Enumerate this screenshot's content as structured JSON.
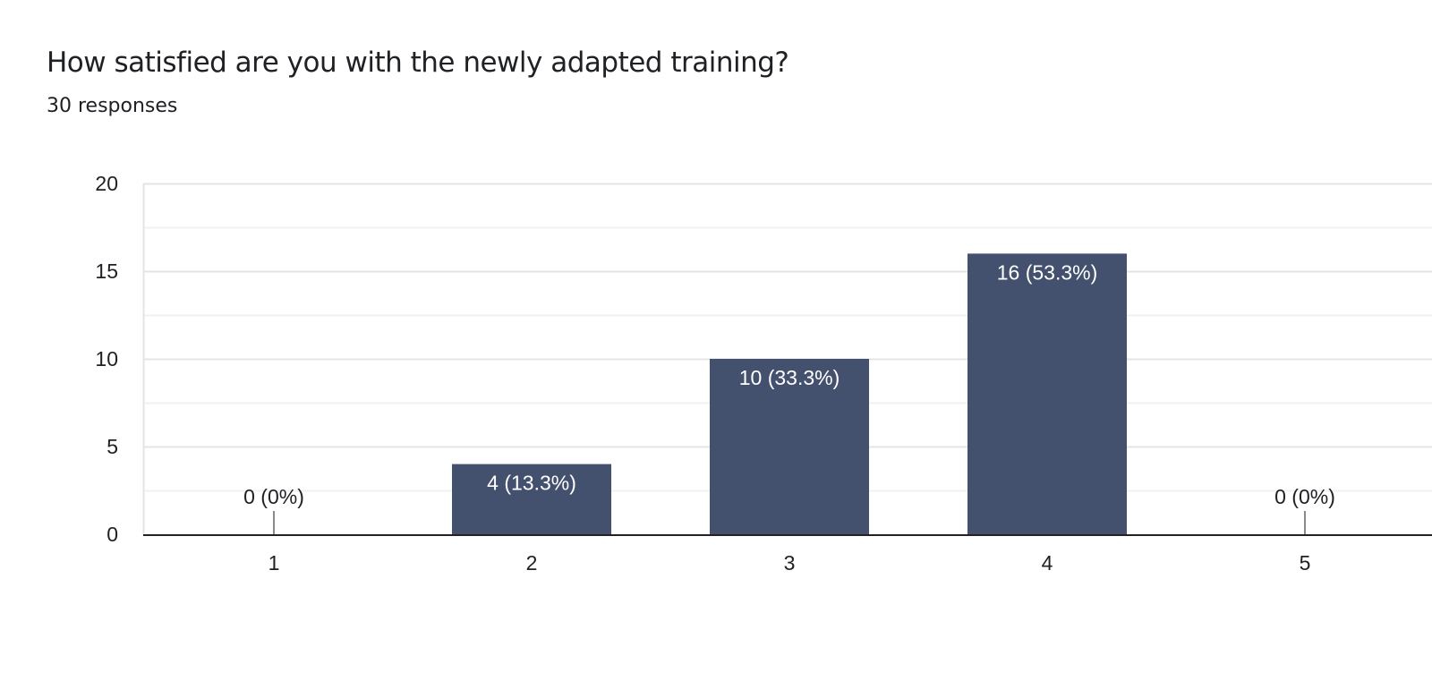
{
  "question": {
    "title": "How satisfied are you with the newly adapted training?",
    "responses": "30 responses"
  },
  "colors": {
    "bar": "#44516e",
    "grid": "#e8e8e8",
    "axis": "#222222",
    "text": "#202124",
    "zero_tick": "#8a8a8a"
  },
  "chart_data": {
    "type": "bar",
    "categories": [
      "1",
      "2",
      "3",
      "4",
      "5"
    ],
    "values": [
      0,
      4,
      10,
      16,
      0
    ],
    "data_labels": [
      "0 (0%)",
      "4 (13.3%)",
      "10 (33.3%)",
      "16 (53.3%)",
      "0 (0%)"
    ],
    "yticks": [
      "0",
      "5",
      "10",
      "15",
      "20"
    ],
    "ylim": [
      0,
      20
    ],
    "minor_grid_step": 2.5,
    "grid": true,
    "legend": "none"
  }
}
